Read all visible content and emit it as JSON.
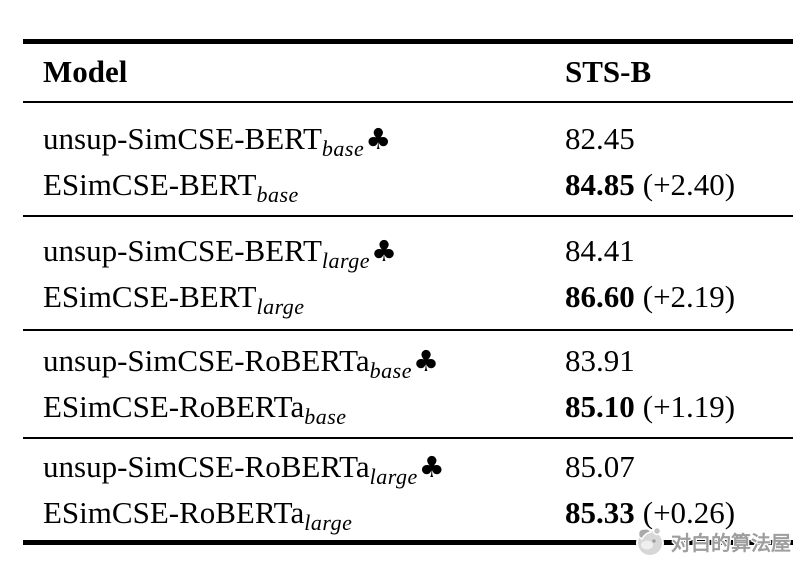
{
  "table": {
    "header": {
      "model": "Model",
      "score": "STS-B"
    },
    "club_char": "♣",
    "groups": [
      {
        "rows": [
          {
            "model": "unsup-SimCSE-BERT",
            "subscript": "base",
            "club": true,
            "score": "82.45",
            "score_bold": false,
            "delta": ""
          },
          {
            "model": "ESimCSE-BERT",
            "subscript": "base",
            "club": false,
            "score": "84.85",
            "score_bold": true,
            "delta": "(+2.40)"
          }
        ]
      },
      {
        "rows": [
          {
            "model": "unsup-SimCSE-BERT",
            "subscript": "large",
            "club": true,
            "score": "84.41",
            "score_bold": false,
            "delta": ""
          },
          {
            "model": "ESimCSE-BERT",
            "subscript": "large",
            "club": false,
            "score": "86.60",
            "score_bold": true,
            "delta": "(+2.19)"
          }
        ]
      },
      {
        "rows": [
          {
            "model": "unsup-SimCSE-RoBERTa",
            "subscript": "base",
            "club": true,
            "score": "83.91",
            "score_bold": false,
            "delta": ""
          },
          {
            "model": "ESimCSE-RoBERTa",
            "subscript": "base",
            "club": false,
            "score": "85.10",
            "score_bold": true,
            "delta": "(+1.19)"
          }
        ]
      },
      {
        "rows": [
          {
            "model": "unsup-SimCSE-RoBERTa",
            "subscript": "large",
            "club": true,
            "score": "85.07",
            "score_bold": false,
            "delta": ""
          },
          {
            "model": "ESimCSE-RoBERTa",
            "subscript": "large",
            "club": false,
            "score": "85.33",
            "score_bold": true,
            "delta": "(+0.26)"
          }
        ]
      }
    ]
  },
  "watermark": {
    "text": "对白的算法屋"
  },
  "colors": {
    "text": "#000000",
    "rule": "#000000",
    "watermark_text": "#9e9e9e"
  }
}
